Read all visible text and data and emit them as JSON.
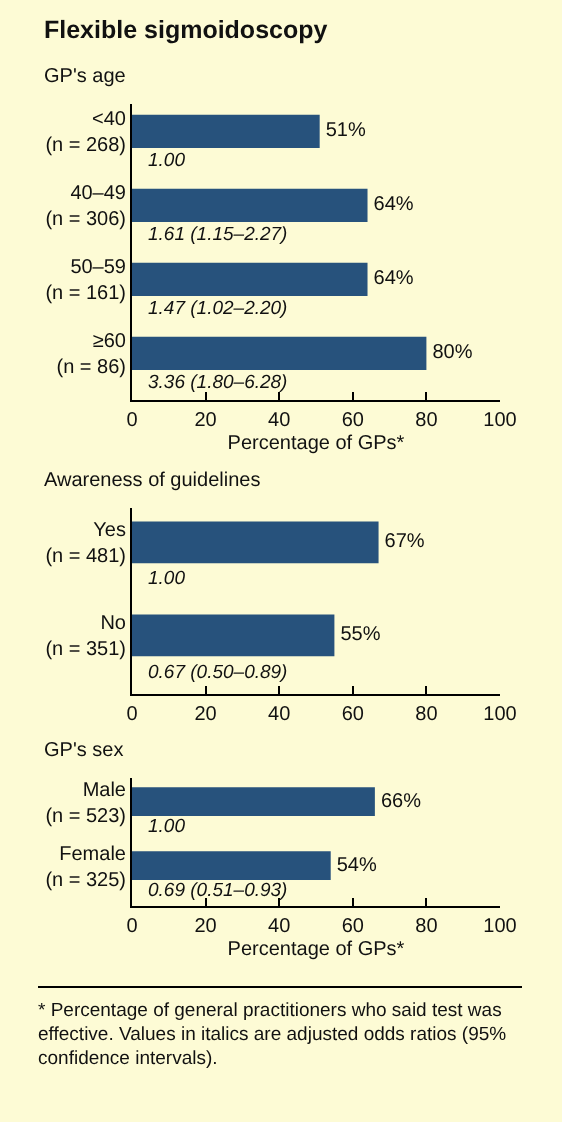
{
  "chart_data": [
    {
      "type": "bar",
      "orientation": "horizontal",
      "title": "Flexible sigmoidoscopy",
      "subtitle": "GP's age",
      "xlabel": "Percentage of GPs*",
      "categories": [
        "<40\n(n = 268)",
        "40–49\n(n = 306)",
        "50–59\n(n = 161)",
        "≥60\n(n = 86)"
      ],
      "values": [
        51,
        64,
        64,
        80
      ],
      "value_labels": [
        "51%",
        "64%",
        "64%",
        "80%"
      ],
      "color": "#27527c",
      "xlim": [
        0,
        100
      ],
      "xticks": [
        0,
        20,
        40,
        60,
        80,
        100
      ],
      "grid": false,
      "annotations": [
        "1.00",
        "1.61 (1.15–2.27)",
        "1.47 (1.02–2.20)",
        "3.36 (1.80–6.28)"
      ]
    },
    {
      "type": "bar",
      "orientation": "horizontal",
      "subtitle": "Awareness of guidelines",
      "categories": [
        "Yes\n(n = 481)",
        "No\n(n = 351)"
      ],
      "values": [
        67,
        55
      ],
      "value_labels": [
        "67%",
        "55%"
      ],
      "color": "#27527c",
      "xlim": [
        0,
        100
      ],
      "xticks": [
        0,
        20,
        40,
        60,
        80,
        100
      ],
      "grid": false,
      "annotations": [
        "1.00",
        "0.67 (0.50–0.89)"
      ]
    },
    {
      "type": "bar",
      "orientation": "horizontal",
      "subtitle": "GP's sex",
      "xlabel": "Percentage of GPs*",
      "categories": [
        "Male\n(n = 523)",
        "Female\n(n = 325)"
      ],
      "values": [
        66,
        54
      ],
      "value_labels": [
        "66%",
        "54%"
      ],
      "color": "#27527c",
      "xlim": [
        0,
        100
      ],
      "xticks": [
        0,
        20,
        40,
        60,
        80,
        100
      ],
      "grid": false,
      "annotations": [
        "1.00",
        "0.69 (0.51–0.93)",
        "* Percentage of general practitioners who said test was effective. Values in italics are adjusted odds ratios (95% confidence intervals)."
      ]
    }
  ]
}
